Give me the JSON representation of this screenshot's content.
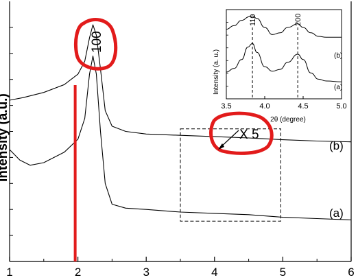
{
  "chart_data": {
    "type": "line",
    "main": {
      "xlabel": "",
      "ylabel": "Intensity (a.u.)",
      "xlim": [
        1,
        6
      ],
      "ylim": [
        0,
        1
      ],
      "xticks": [
        "1",
        "2",
        "3",
        "4",
        "5",
        "6"
      ],
      "series": [
        {
          "name": "(b)",
          "x": [
            1.0,
            1.2,
            1.5,
            1.8,
            2.0,
            2.1,
            2.17,
            2.22,
            2.27,
            2.33,
            2.4,
            2.5,
            2.7,
            3.0,
            3.5,
            4.0,
            4.5,
            5.0,
            5.5,
            6.0
          ],
          "y": [
            0.62,
            0.63,
            0.65,
            0.68,
            0.72,
            0.77,
            0.86,
            0.91,
            0.87,
            0.74,
            0.58,
            0.52,
            0.5,
            0.49,
            0.485,
            0.48,
            0.475,
            0.468,
            0.463,
            0.46
          ]
        },
        {
          "name": "(a)",
          "x": [
            1.0,
            1.15,
            1.3,
            1.5,
            1.8,
            2.0,
            2.1,
            2.17,
            2.22,
            2.27,
            2.33,
            2.4,
            2.5,
            2.7,
            3.0,
            3.5,
            4.0,
            4.5,
            5.0,
            5.5,
            6.0
          ],
          "y": [
            0.43,
            0.39,
            0.37,
            0.38,
            0.42,
            0.47,
            0.55,
            0.72,
            0.79,
            0.72,
            0.5,
            0.3,
            0.22,
            0.205,
            0.2,
            0.19,
            0.185,
            0.18,
            0.17,
            0.165,
            0.16
          ]
        }
      ],
      "series_labels": [
        "(b)",
        "(a)"
      ],
      "zoom_box": {
        "x": [
          3.5,
          4.97
        ],
        "y": [
          0.155,
          0.51
        ]
      }
    },
    "inset": {
      "xlabel": "2θ (degree)",
      "ylabel": "Intensity (a. u.)",
      "xlim": [
        3.5,
        5.0
      ],
      "ylim": [
        0,
        1
      ],
      "xticks": [
        "3.5",
        "4.0",
        "4.5",
        "5.0"
      ],
      "peak_labels": [
        {
          "text": "110",
          "x": 3.84
        },
        {
          "text": "200",
          "x": 4.43
        }
      ],
      "series": [
        {
          "name": "(b)",
          "x": [
            3.5,
            3.6,
            3.7,
            3.8,
            3.84,
            3.9,
            4.0,
            4.1,
            4.2,
            4.3,
            4.43,
            4.5,
            4.6,
            4.7,
            4.8,
            5.0
          ],
          "y": [
            0.78,
            0.82,
            0.88,
            0.92,
            0.93,
            0.9,
            0.8,
            0.72,
            0.74,
            0.8,
            0.84,
            0.8,
            0.74,
            0.7,
            0.69,
            0.69
          ]
        },
        {
          "name": "(a)",
          "x": [
            3.5,
            3.6,
            3.7,
            3.78,
            3.84,
            3.9,
            4.0,
            4.1,
            4.2,
            4.3,
            4.43,
            4.5,
            4.6,
            4.7,
            4.8,
            5.0
          ],
          "y": [
            0.3,
            0.34,
            0.44,
            0.58,
            0.62,
            0.52,
            0.36,
            0.31,
            0.33,
            0.41,
            0.5,
            0.44,
            0.29,
            0.22,
            0.2,
            0.19
          ]
        }
      ],
      "series_labels": [
        "(b)",
        "(a)"
      ]
    },
    "annotations": {
      "peak_100": "100",
      "magnification": "X 5",
      "vertical_marker_x": 1.96,
      "marker_color": "#e21b1b"
    }
  }
}
